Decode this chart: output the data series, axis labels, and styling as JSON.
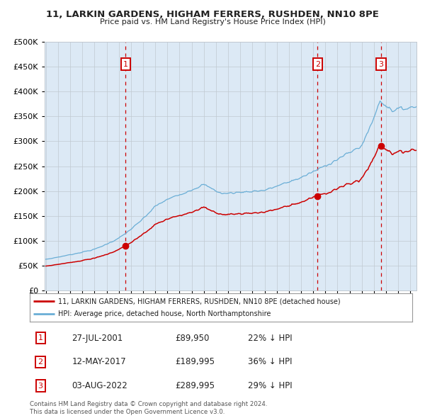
{
  "title_line1": "11, LARKIN GARDENS, HIGHAM FERRERS, RUSHDEN, NN10 8PE",
  "title_line2": "Price paid vs. HM Land Registry's House Price Index (HPI)",
  "plot_bg_color": "#dce9f5",
  "fig_bg_color": "#ffffff",
  "hpi_color": "#6aaed6",
  "price_color": "#cc0000",
  "marker_color": "#cc0000",
  "dashed_color": "#cc0000",
  "ylim": [
    0,
    500000
  ],
  "yticks": [
    0,
    50000,
    100000,
    150000,
    200000,
    250000,
    300000,
    350000,
    400000,
    450000,
    500000
  ],
  "xlim_start": 1994.9,
  "xlim_end": 2025.5,
  "sale_dates": [
    2001.57,
    2017.36,
    2022.58
  ],
  "sale_prices": [
    89950,
    189995,
    289995
  ],
  "sale_labels": [
    "1",
    "2",
    "3"
  ],
  "legend_label_red": "11, LARKIN GARDENS, HIGHAM FERRERS, RUSHDEN, NN10 8PE (detached house)",
  "legend_label_blue": "HPI: Average price, detached house, North Northamptonshire",
  "table_rows": [
    {
      "num": "1",
      "date": "27-JUL-2001",
      "price": "£89,950",
      "pct": "22% ↓ HPI"
    },
    {
      "num": "2",
      "date": "12-MAY-2017",
      "price": "£189,995",
      "pct": "36% ↓ HPI"
    },
    {
      "num": "3",
      "date": "03-AUG-2022",
      "price": "£289,995",
      "pct": "29% ↓ HPI"
    }
  ],
  "footnote": "Contains HM Land Registry data © Crown copyright and database right 2024.\nThis data is licensed under the Open Government Licence v3.0."
}
